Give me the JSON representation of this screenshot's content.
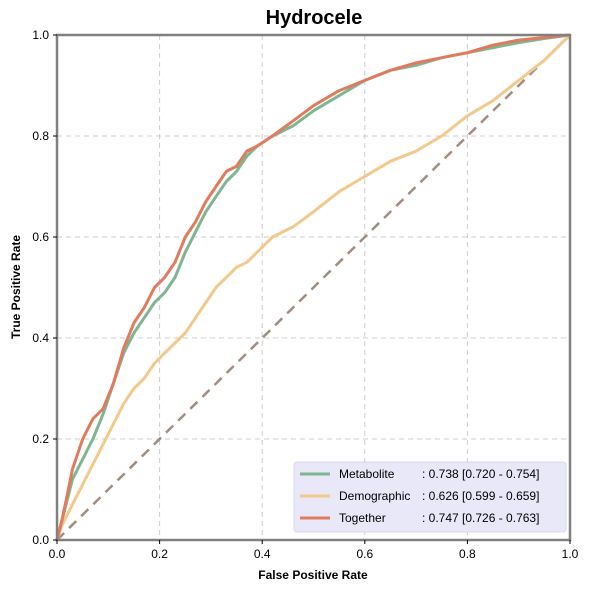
{
  "chart_data": {
    "type": "line",
    "title": "Hydrocele",
    "xlabel": "False Positive Rate",
    "ylabel": "True Positive Rate",
    "xlim": [
      0.0,
      1.0
    ],
    "ylim": [
      0.0,
      1.0
    ],
    "x_ticks": [
      "0.0",
      "0.2",
      "0.4",
      "0.6",
      "0.8",
      "1.0"
    ],
    "y_ticks": [
      "0.0",
      "0.2",
      "0.4",
      "0.6",
      "0.8",
      "1.0"
    ],
    "grid": true,
    "legend_position": "bottom-right",
    "series": [
      {
        "name": "Metabolite",
        "auc_label": ": 0.738 [0.720 - 0.754]",
        "color": "#7fb591",
        "x": [
          0.0,
          0.01,
          0.02,
          0.03,
          0.05,
          0.07,
          0.09,
          0.11,
          0.13,
          0.15,
          0.17,
          0.19,
          0.21,
          0.23,
          0.25,
          0.27,
          0.29,
          0.31,
          0.33,
          0.35,
          0.37,
          0.39,
          0.42,
          0.46,
          0.5,
          0.55,
          0.6,
          0.65,
          0.7,
          0.75,
          0.8,
          0.85,
          0.9,
          0.95,
          1.0
        ],
        "y": [
          0.0,
          0.04,
          0.08,
          0.12,
          0.16,
          0.2,
          0.25,
          0.31,
          0.37,
          0.41,
          0.44,
          0.47,
          0.49,
          0.52,
          0.57,
          0.61,
          0.65,
          0.68,
          0.71,
          0.73,
          0.76,
          0.78,
          0.8,
          0.82,
          0.85,
          0.88,
          0.91,
          0.93,
          0.94,
          0.955,
          0.965,
          0.975,
          0.985,
          0.993,
          1.0
        ]
      },
      {
        "name": "Demographic",
        "auc_label": ": 0.626 [0.599 - 0.659]",
        "color": "#f3c98b",
        "x": [
          0.0,
          0.01,
          0.03,
          0.05,
          0.07,
          0.09,
          0.11,
          0.13,
          0.15,
          0.17,
          0.19,
          0.21,
          0.23,
          0.25,
          0.27,
          0.29,
          0.31,
          0.33,
          0.35,
          0.37,
          0.39,
          0.42,
          0.46,
          0.5,
          0.55,
          0.6,
          0.65,
          0.7,
          0.75,
          0.8,
          0.85,
          0.9,
          0.95,
          1.0
        ],
        "y": [
          0.0,
          0.03,
          0.07,
          0.11,
          0.15,
          0.19,
          0.23,
          0.27,
          0.3,
          0.32,
          0.35,
          0.37,
          0.39,
          0.41,
          0.44,
          0.47,
          0.5,
          0.52,
          0.54,
          0.55,
          0.57,
          0.6,
          0.62,
          0.65,
          0.69,
          0.72,
          0.75,
          0.77,
          0.8,
          0.84,
          0.87,
          0.91,
          0.95,
          1.0
        ]
      },
      {
        "name": "Together",
        "auc_label": ": 0.747 [0.726 - 0.763]",
        "color": "#e07b5e",
        "x": [
          0.0,
          0.01,
          0.02,
          0.03,
          0.05,
          0.07,
          0.09,
          0.11,
          0.13,
          0.15,
          0.17,
          0.19,
          0.21,
          0.23,
          0.25,
          0.27,
          0.29,
          0.31,
          0.33,
          0.35,
          0.37,
          0.39,
          0.42,
          0.46,
          0.5,
          0.55,
          0.6,
          0.65,
          0.7,
          0.75,
          0.8,
          0.85,
          0.9,
          0.95,
          1.0
        ],
        "y": [
          0.0,
          0.04,
          0.09,
          0.14,
          0.2,
          0.24,
          0.26,
          0.31,
          0.38,
          0.43,
          0.46,
          0.5,
          0.52,
          0.55,
          0.6,
          0.63,
          0.67,
          0.7,
          0.73,
          0.74,
          0.77,
          0.78,
          0.8,
          0.83,
          0.86,
          0.89,
          0.91,
          0.93,
          0.945,
          0.955,
          0.965,
          0.98,
          0.99,
          0.995,
          1.0
        ]
      }
    ],
    "reference_line": {
      "x": [
        0.0,
        1.0
      ],
      "y": [
        0.0,
        1.0
      ],
      "color": "#a68a7c",
      "style": "dashed"
    }
  }
}
